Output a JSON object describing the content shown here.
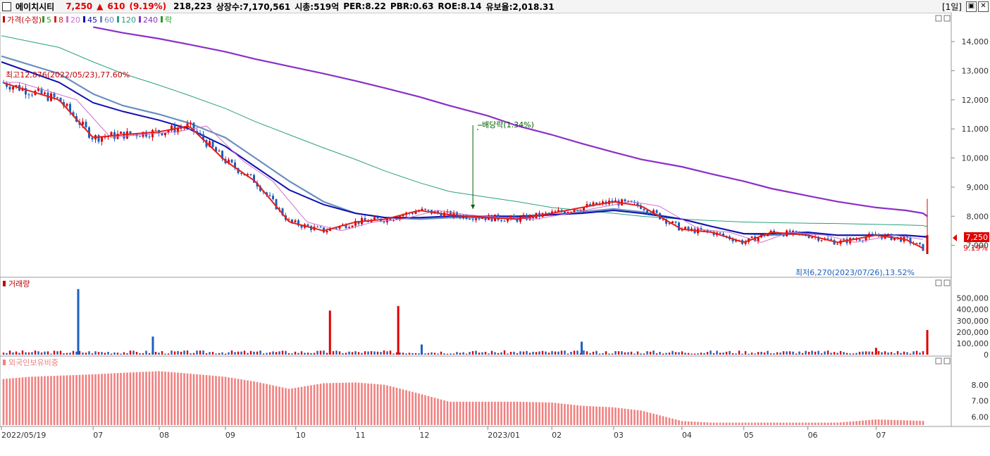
{
  "header": {
    "name": "에이치시티",
    "price": "7,250",
    "arrow": "▲",
    "change": "610",
    "change_pct": "(9.19%)",
    "volume": "218,223",
    "shares": "상장수:7,170,561",
    "mcap": "시총:519억",
    "per": "PER:8.22",
    "pbr": "PBR:0.63",
    "roe": "ROE:8.14",
    "float": "유보율:2,018.31",
    "period": "[1일]",
    "restore_glyph": "▣",
    "close_glyph": "✕"
  },
  "colors": {
    "up": "#e00000",
    "down": "#1c5fbf",
    "ma5": "#2a9d2a",
    "ma8": "#e02020",
    "ma20": "#d070d0",
    "ma45": "#1010b0",
    "ma60": "#6a8fc0",
    "ma120": "#2aa080",
    "ma240": "#8a2fc8",
    "foreign": "#f08080"
  },
  "price_panel": {
    "legend": [
      {
        "label": "가격(수정)",
        "color": "#c00000"
      },
      {
        "label": "5",
        "color": "#2a9d2a"
      },
      {
        "label": "8",
        "color": "#e02020"
      },
      {
        "label": "20",
        "color": "#d070d0"
      },
      {
        "label": "45",
        "color": "#1010b0"
      },
      {
        "label": "60",
        "color": "#6a8fc0"
      },
      {
        "label": "120",
        "color": "#2aa080"
      },
      {
        "label": "240",
        "color": "#8a2fc8"
      },
      {
        "label": "락",
        "color": "#2a9d2a"
      }
    ],
    "high_note": "최고12,876(2022/05/23),77.60%",
    "low_note": "최저6,270(2023/07/26),13.52%",
    "dividend_note": "배당락(1.34%)",
    "last_price": "7,250",
    "last_pct": "9.19%",
    "y_ticks": [
      "14,000",
      "13,000",
      "12,000",
      "11,000",
      "10,000",
      "9,000",
      "8,000",
      "7,000"
    ]
  },
  "volume_panel": {
    "title": "거래량",
    "y_ticks": [
      "500,000",
      "400,000",
      "300,000",
      "200,000",
      "100,000",
      "0"
    ]
  },
  "foreign_panel": {
    "title": "외국인보유비중",
    "y_ticks": [
      "8.00",
      "7.00",
      "6.00"
    ]
  },
  "x_labels": [
    "2022/05/19",
    "07",
    "08",
    "09",
    "10",
    "11",
    "12",
    "2023/01",
    "02",
    "03",
    "04",
    "05",
    "06",
    "07"
  ],
  "chart_data": [
    {
      "type": "line",
      "title": "에이치시티 가격(수정)",
      "ylim": [
        6000,
        14800
      ],
      "x": [
        "2022/05/19",
        "2022/06/15",
        "2022/07/01",
        "2022/07/15",
        "2022/08/01",
        "2022/08/15",
        "2022/09/01",
        "2022/09/15",
        "2022/10/01",
        "2022/10/17",
        "2022/11/01",
        "2022/11/15",
        "2022/12/01",
        "2022/12/15",
        "2023/01/02",
        "2023/01/16",
        "2023/02/01",
        "2023/02/15",
        "2023/03/02",
        "2023/03/15",
        "2023/04/03",
        "2023/04/17",
        "2023/05/02",
        "2023/05/15",
        "2023/06/01",
        "2023/06/15",
        "2023/07/03",
        "2023/07/17",
        "2023/07/25",
        "2023/07/26",
        "2023/07/27"
      ],
      "series": [
        {
          "name": "가격(수정)",
          "values": [
            12600,
            12000,
            10700,
            10800,
            10900,
            11100,
            9900,
            9200,
            7800,
            7500,
            7800,
            7900,
            8200,
            8050,
            7950,
            7900,
            8100,
            8300,
            8500,
            8350,
            7550,
            7450,
            7100,
            7450,
            7350,
            7100,
            7350,
            7200,
            6900,
            6640,
            7250
          ]
        },
        {
          "name": "240",
          "values": [
            null,
            null,
            14500,
            14300,
            14100,
            13900,
            13650,
            13400,
            13150,
            12900,
            12650,
            12400,
            12100,
            11800,
            11450,
            11100,
            10800,
            10500,
            10200,
            9950,
            9700,
            9450,
            9200,
            8950,
            8700,
            8500,
            8300,
            8200,
            8100,
            8050,
            8000
          ]
        },
        {
          "name": "120",
          "values": [
            14200,
            13800,
            13300,
            12900,
            12500,
            12150,
            11700,
            11250,
            10800,
            10350,
            9950,
            9550,
            9150,
            8850,
            8650,
            8500,
            8300,
            8200,
            8100,
            8000,
            7900,
            7850,
            7800,
            7780,
            7760,
            7750,
            7720,
            7700,
            7680,
            7660,
            7650
          ]
        },
        {
          "name": "60",
          "values": [
            13500,
            12900,
            12200,
            11800,
            11500,
            11200,
            10700,
            10000,
            9200,
            8500,
            8100,
            7950,
            7900,
            7950,
            7950,
            7950,
            8050,
            8150,
            8250,
            8150,
            7900,
            7650,
            7400,
            7350,
            7400,
            7350,
            7350,
            7350,
            7300,
            7280,
            7280
          ]
        },
        {
          "name": "45",
          "values": [
            13300,
            12600,
            11900,
            11600,
            11300,
            11000,
            10400,
            9700,
            8900,
            8400,
            8100,
            7950,
            7950,
            8000,
            8000,
            8000,
            8050,
            8100,
            8200,
            8100,
            7900,
            7650,
            7400,
            7400,
            7450,
            7350,
            7350,
            7350,
            7300,
            7300,
            7300
          ]
        }
      ]
    },
    {
      "type": "bar",
      "title": "거래량",
      "ylim": [
        0,
        560000
      ],
      "x": [
        "2022/06/24",
        "2022/07/29",
        "2022/10/20",
        "2022/11/21",
        "2022/12/02",
        "2023/02/15",
        "2023/07/03",
        "2023/07/27"
      ],
      "values": [
        580000,
        160000,
        390000,
        430000,
        90000,
        115000,
        60000,
        218223
      ]
    },
    {
      "type": "area",
      "title": "외국인보유비중",
      "ylim": [
        5.5,
        9.0
      ],
      "x": [
        "2022/05/19",
        "2022/06/01",
        "2022/07/01",
        "2022/07/15",
        "2022/08/01",
        "2022/08/15",
        "2022/09/01",
        "2022/09/15",
        "2022/10/01",
        "2022/10/17",
        "2022/11/01",
        "2022/11/15",
        "2022/12/01",
        "2022/12/15",
        "2023/01/02",
        "2023/01/16",
        "2023/02/01",
        "2023/02/15",
        "2023/03/02",
        "2023/03/15",
        "2023/04/03",
        "2023/04/17",
        "2023/05/02",
        "2023/05/15",
        "2023/06/01",
        "2023/06/15",
        "2023/07/03",
        "2023/07/27"
      ],
      "values": [
        8.35,
        8.5,
        8.65,
        8.75,
        8.85,
        8.7,
        8.5,
        8.2,
        7.75,
        8.1,
        8.15,
        8.0,
        7.45,
        6.95,
        6.95,
        6.95,
        6.9,
        6.7,
        6.6,
        6.4,
        5.75,
        5.65,
        5.65,
        5.65,
        5.65,
        5.65,
        5.85,
        5.75
      ]
    }
  ]
}
